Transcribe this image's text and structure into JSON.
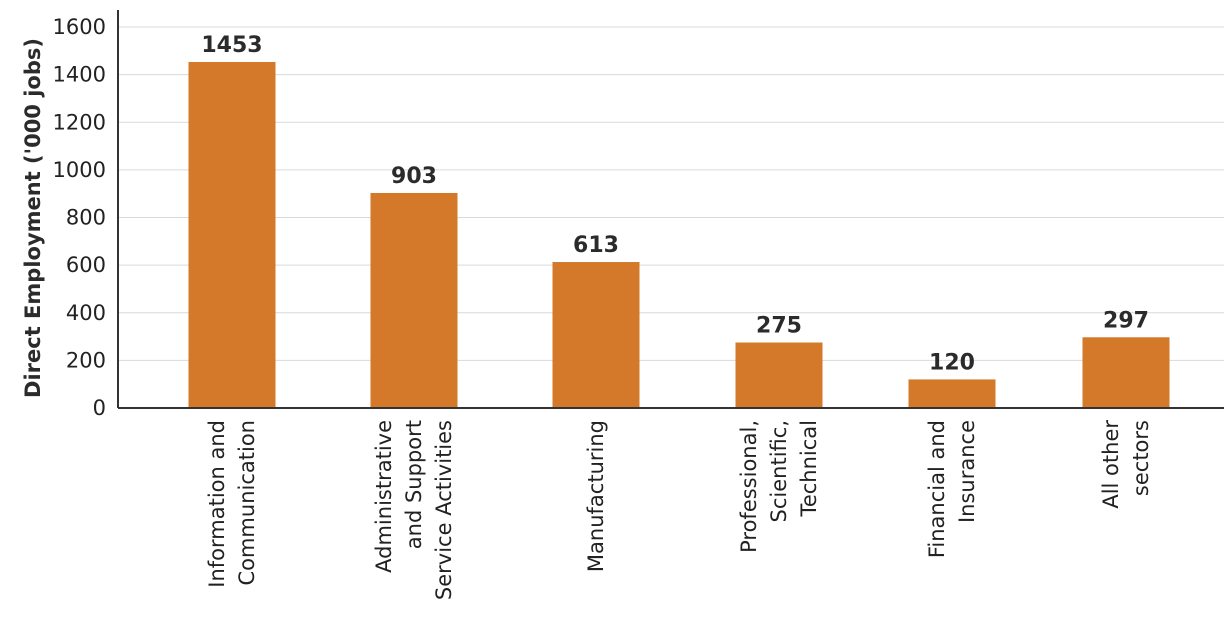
{
  "chart_data": {
    "type": "bar",
    "categories": [
      [
        "Information and",
        "Communication"
      ],
      [
        "Administrative",
        "and Support",
        "Service Activities"
      ],
      [
        "Manufacturing"
      ],
      [
        "Professional,",
        "Scientific,",
        "Technical"
      ],
      [
        "Financial and",
        "Insurance"
      ],
      [
        "All other",
        "sectors"
      ]
    ],
    "values": [
      1453,
      903,
      613,
      275,
      120,
      297
    ],
    "value_labels": [
      "1453",
      "903",
      "613",
      "275",
      "120",
      "297"
    ],
    "title": "",
    "xlabel": "",
    "ylabel": "Direct Employment ('000 jobs)",
    "ylim": [
      0,
      1600
    ],
    "yticks": [
      0,
      200,
      400,
      600,
      800,
      1000,
      1200,
      1400,
      1600
    ],
    "grid": true,
    "legend": "none",
    "bar_color": "#D4782A"
  }
}
